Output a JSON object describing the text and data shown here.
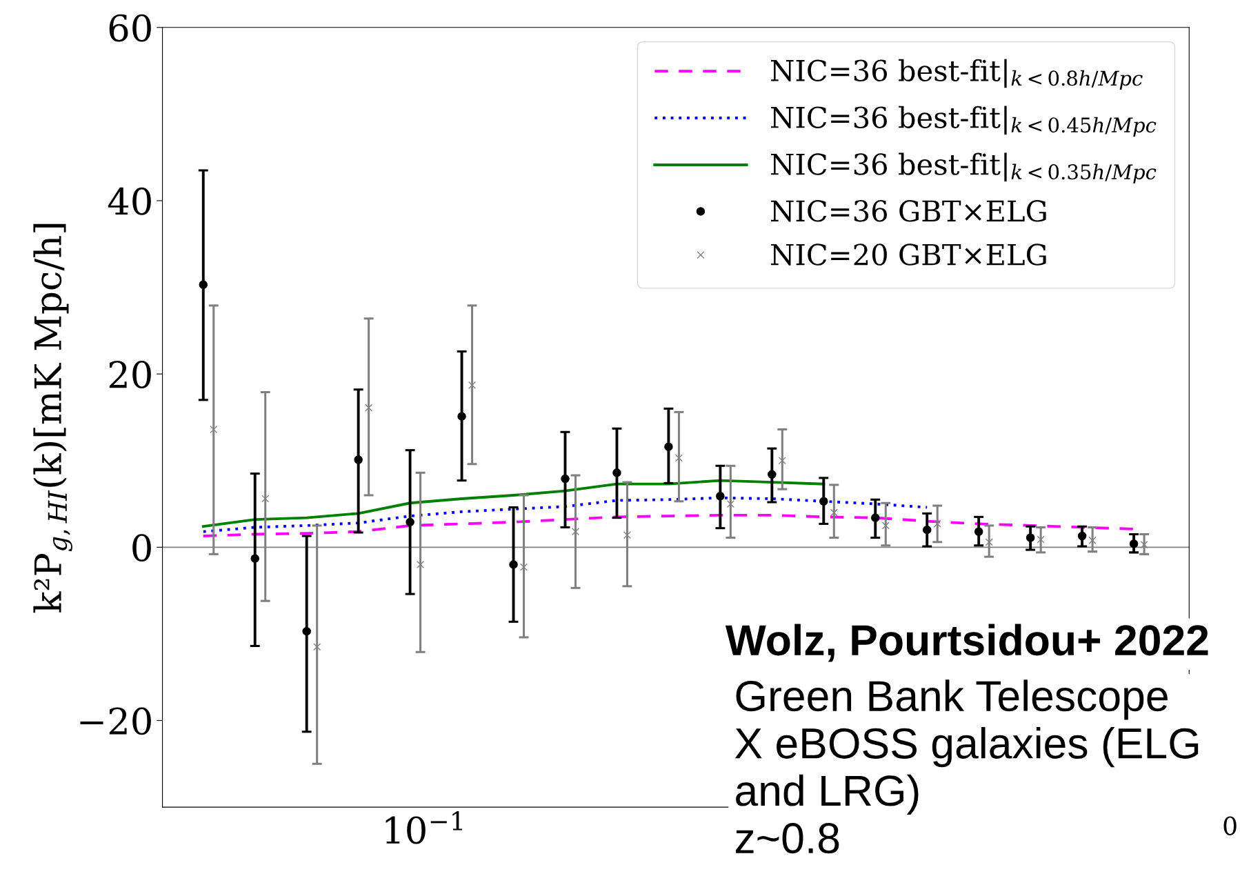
{
  "chart_data": {
    "type": "line",
    "ylabel": "k²P$_{g,HI}$(k)[mK Mpc/h]",
    "categories": [
      null,
      null,
      null,
      null,
      null,
      null,
      null,
      null,
      null,
      null,
      null,
      null,
      null,
      null,
      null,
      null,
      null,
      null,
      null
    ],
    "ylim": [
      -30,
      60
    ],
    "yticks": [
      {
        "value": -20,
        "label": "−20"
      },
      0,
      20,
      40,
      60
    ],
    "grid": false,
    "legend": "top right",
    "ref_lines": [
      {
        "axis": "y",
        "value": 0,
        "color": "#808080"
      }
    ],
    "series": [
      {
        "name": "NIC=36 best-fit|$_{k<0.8h/Mpc}$",
        "color": "#ff00ff",
        "line_style": "dashed",
        "values": [
          1.3,
          1.5,
          1.6,
          1.8,
          2.5,
          2.7,
          2.9,
          3.2,
          3.5,
          3.6,
          3.7,
          3.7,
          3.5,
          3.4,
          3.0,
          2.7,
          2.5,
          2.3,
          2.1
        ]
      },
      {
        "name": "NIC=36 best-fit|$_{k<0.45h/Mpc}$",
        "color": "#0000ff",
        "line_style": "dotted",
        "values": [
          1.8,
          2.3,
          2.5,
          2.8,
          3.6,
          4.1,
          4.4,
          4.7,
          5.4,
          5.5,
          5.7,
          5.6,
          5.3,
          5.0,
          4.6,
          null,
          null,
          null,
          null
        ]
      },
      {
        "name": "NIC=36 best-fit|$_{k<0.35h/Mpc}$",
        "color": "#008000",
        "line_style": "solid",
        "values": [
          2.4,
          3.2,
          3.4,
          3.9,
          5.1,
          5.6,
          6.0,
          6.5,
          7.3,
          7.3,
          7.7,
          7.5,
          7.3,
          null,
          null,
          null,
          null,
          null,
          null
        ]
      },
      {
        "name": "NIC=36 GBT×ELG",
        "type": "scatter",
        "marker": "circle",
        "color": "#000000",
        "values": [
          30.3,
          -1.3,
          -9.7,
          10.1,
          2.9,
          15.1,
          -2.0,
          7.9,
          8.6,
          11.6,
          5.9,
          8.4,
          5.3,
          3.4,
          2.0,
          1.8,
          1.1,
          1.3,
          0.4
        ],
        "errors": [
          [
            17.0,
            43.5
          ],
          [
            -11.4,
            8.5
          ],
          [
            -21.3,
            1.3
          ],
          [
            1.7,
            18.2
          ],
          [
            -5.4,
            11.2
          ],
          [
            7.7,
            22.6
          ],
          [
            -8.6,
            4.6
          ],
          [
            2.3,
            13.3
          ],
          [
            3.4,
            13.7
          ],
          [
            7.4,
            16.0
          ],
          [
            2.2,
            9.4
          ],
          [
            5.2,
            11.4
          ],
          [
            2.7,
            8.0
          ],
          [
            1.1,
            5.5
          ],
          [
            0.1,
            3.9
          ],
          [
            0.2,
            3.5
          ],
          [
            -0.3,
            2.4
          ],
          [
            0.1,
            2.4
          ],
          [
            -0.6,
            1.5
          ]
        ]
      },
      {
        "name": "NIC=20 GBT×ELG",
        "type": "scatter",
        "marker": "cross",
        "color": "#808080",
        "values": [
          13.6,
          5.6,
          -11.5,
          16.1,
          -2.0,
          18.7,
          -2.3,
          1.8,
          1.4,
          10.3,
          5.0,
          10.0,
          4.0,
          2.5,
          2.7,
          0.6,
          0.9,
          0.8,
          0.3
        ],
        "errors": [
          [
            -0.8,
            27.9
          ],
          [
            -6.2,
            17.9
          ],
          [
            -25.0,
            2.5
          ],
          [
            6.0,
            26.4
          ],
          [
            -12.1,
            8.6
          ],
          [
            9.6,
            27.9
          ],
          [
            -10.4,
            6.0
          ],
          [
            -4.7,
            8.3
          ],
          [
            -4.5,
            7.5
          ],
          [
            5.3,
            15.6
          ],
          [
            1.1,
            9.4
          ],
          [
            6.7,
            13.6
          ],
          [
            1.1,
            7.2
          ],
          [
            0.2,
            5.1
          ],
          [
            0.6,
            4.8
          ],
          [
            -1.1,
            2.5
          ],
          [
            -0.6,
            2.3
          ],
          [
            -0.5,
            2.3
          ],
          [
            -0.8,
            1.5
          ]
        ]
      }
    ],
    "annotations": [
      "10$^{−1}$",
      "0",
      "Wolz, Pourtsidou+ 2022",
      "Green Bank Telescope\nX eBOSS galaxies (ELG\nand LRG)\nz~0.8"
    ]
  }
}
